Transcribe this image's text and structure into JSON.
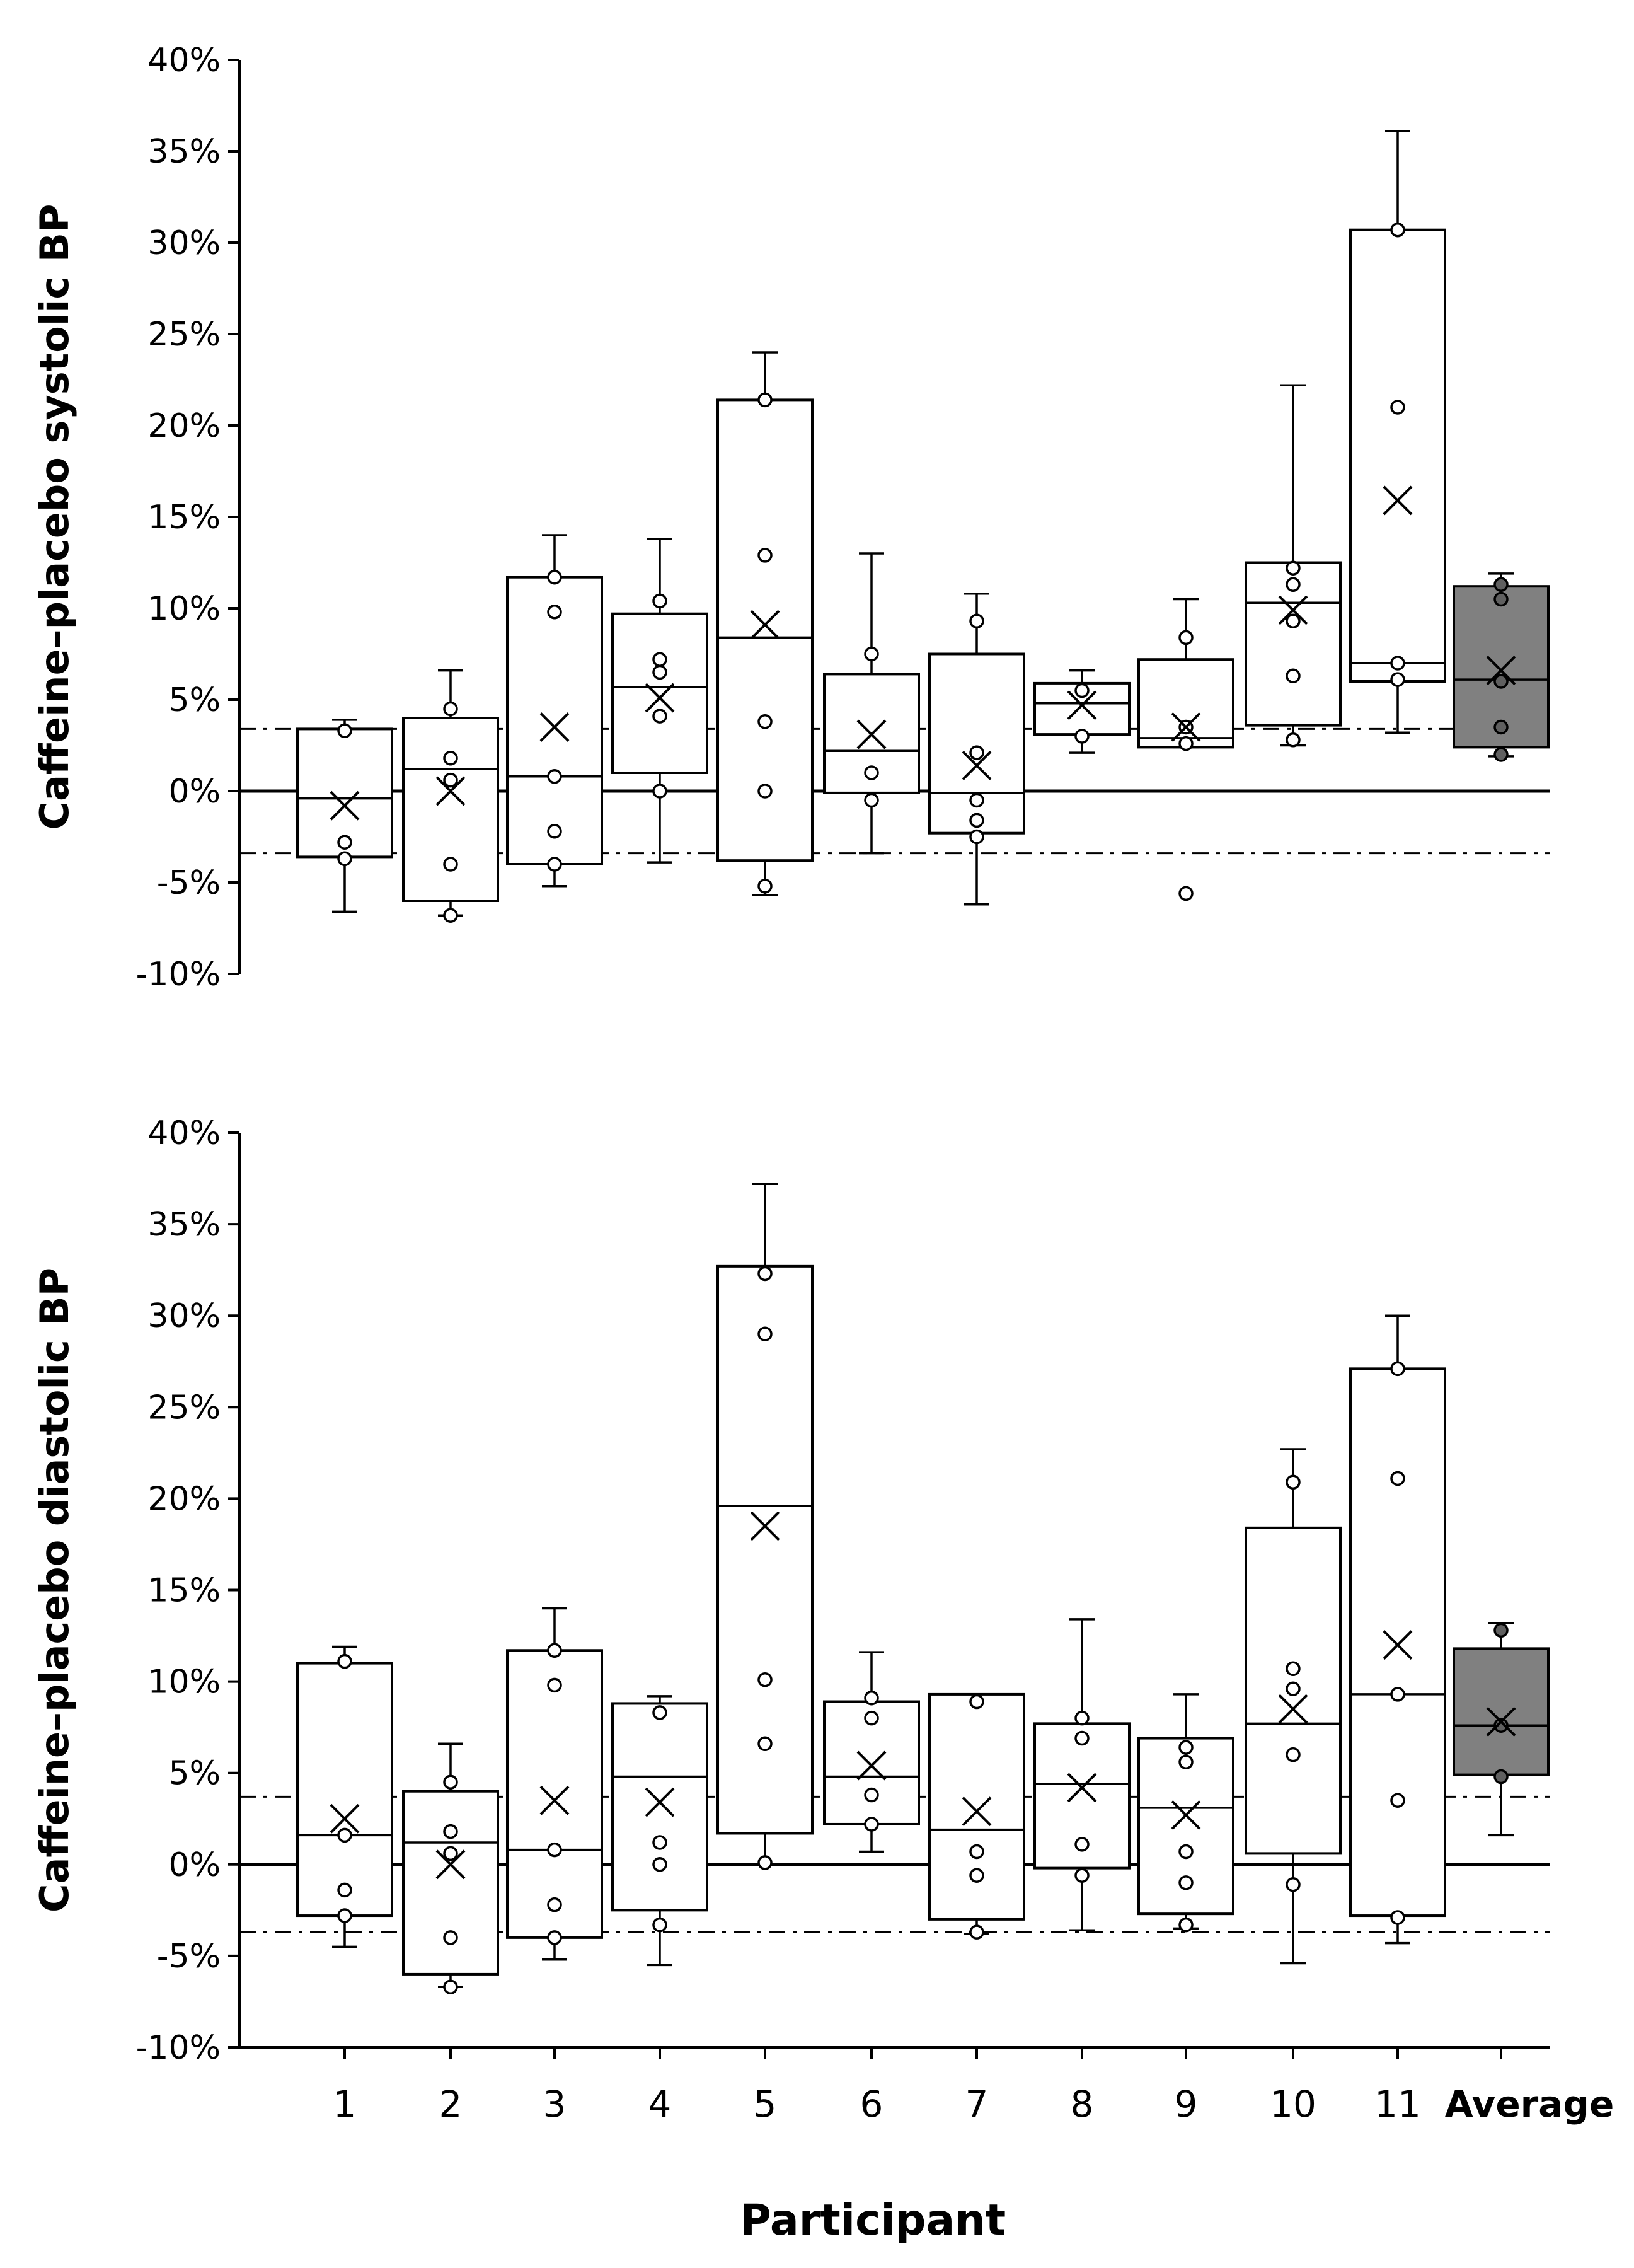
{
  "chart_data": [
    {
      "type": "box",
      "ylabel": "Caffeine–placebo systolic BP",
      "ylim": [
        -10,
        40
      ],
      "yticks": [
        40,
        35,
        30,
        25,
        20,
        15,
        10,
        5,
        0,
        -5,
        -10
      ],
      "ytick_labels": [
        "40%",
        "35%",
        "30%",
        "25%",
        "20%",
        "15%",
        "10%",
        "5%",
        "0%",
        "-5%",
        "-10%"
      ],
      "reference_lines": [
        {
          "y": 0,
          "style": "solid"
        },
        {
          "y": 3.4,
          "style": "dashdot"
        },
        {
          "y": -3.4,
          "style": "dashdot"
        }
      ],
      "categories": [
        "1",
        "2",
        "3",
        "4",
        "5",
        "6",
        "7",
        "8",
        "9",
        "10",
        "11",
        "Average"
      ],
      "boxes": [
        {
          "min": -6.6,
          "q1": -3.6,
          "median": -0.4,
          "q3": 3.4,
          "max": 3.9,
          "mean": -0.8,
          "points": [
            3.3,
            -2.8,
            -3.7
          ]
        },
        {
          "min": -6.8,
          "q1": -6.0,
          "median": 1.2,
          "q3": 4.0,
          "max": 6.6,
          "mean": 0.0,
          "points": [
            4.5,
            1.8,
            0.6,
            -4.0,
            -6.8
          ]
        },
        {
          "min": -5.2,
          "q1": -4.0,
          "median": 0.8,
          "q3": 11.7,
          "max": 14.0,
          "mean": 3.5,
          "points": [
            11.7,
            9.8,
            0.8,
            -2.2,
            -4.0
          ]
        },
        {
          "min": -3.9,
          "q1": 1.0,
          "median": 5.7,
          "q3": 9.7,
          "max": 13.8,
          "mean": 5.1,
          "points": [
            10.4,
            7.2,
            6.5,
            4.1,
            0.0
          ]
        },
        {
          "min": -5.7,
          "q1": -3.8,
          "median": 8.4,
          "q3": 21.4,
          "max": 24.0,
          "mean": 9.1,
          "points": [
            21.4,
            12.9,
            3.8,
            0.0,
            -5.2
          ]
        },
        {
          "min": -3.4,
          "q1": -0.1,
          "median": 2.2,
          "q3": 6.4,
          "max": 13.0,
          "mean": 3.1,
          "points": [
            7.5,
            1.0,
            -0.5
          ]
        },
        {
          "min": -6.2,
          "q1": -2.3,
          "median": -0.1,
          "q3": 7.5,
          "max": 10.8,
          "mean": 1.4,
          "points": [
            9.3,
            2.1,
            -0.5,
            -1.6,
            -2.5
          ]
        },
        {
          "min": 2.1,
          "q1": 3.1,
          "median": 4.8,
          "q3": 5.9,
          "max": 6.6,
          "mean": 4.7,
          "points": [
            5.5,
            3.0
          ]
        },
        {
          "min": 2.4,
          "q1": 2.4,
          "median": 2.9,
          "q3": 7.2,
          "max": 10.5,
          "mean": 3.5,
          "points": [
            8.4,
            3.5,
            2.6,
            -5.6
          ]
        },
        {
          "min": 2.5,
          "q1": 3.6,
          "median": 10.3,
          "q3": 12.5,
          "max": 22.2,
          "mean": 9.9,
          "points": [
            12.2,
            11.3,
            9.3,
            6.3,
            2.8
          ]
        },
        {
          "min": 3.2,
          "q1": 6.0,
          "median": 7.0,
          "q3": 30.7,
          "max": 36.1,
          "mean": 15.9,
          "points": [
            30.7,
            21.0,
            7.0,
            6.1
          ]
        },
        {
          "min": 1.9,
          "q1": 2.4,
          "median": 6.1,
          "q3": 11.2,
          "max": 11.9,
          "mean": 6.6,
          "points": [
            11.3,
            10.5,
            6.0,
            3.5,
            2.0
          ],
          "filled": true
        }
      ]
    },
    {
      "type": "box",
      "ylabel": "Caffeine–placebo diastolic BP",
      "xlabel": "Participant",
      "ylim": [
        -10,
        40
      ],
      "yticks": [
        40,
        35,
        30,
        25,
        20,
        15,
        10,
        5,
        0,
        -5,
        -10
      ],
      "ytick_labels": [
        "40%",
        "35%",
        "30%",
        "25%",
        "20%",
        "15%",
        "10%",
        "5%",
        "0%",
        "-5%",
        "-10%"
      ],
      "reference_lines": [
        {
          "y": 0,
          "style": "solid"
        },
        {
          "y": 3.7,
          "style": "dashdot"
        },
        {
          "y": -3.7,
          "style": "dashdot"
        }
      ],
      "categories": [
        "1",
        "2",
        "3",
        "4",
        "5",
        "6",
        "7",
        "8",
        "9",
        "10",
        "11",
        "Average"
      ],
      "boxes": [
        {
          "min": -4.5,
          "q1": -2.8,
          "median": 1.6,
          "q3": 11.0,
          "max": 11.9,
          "mean": 2.5,
          "points": [
            11.1,
            1.6,
            -1.4,
            -2.8
          ]
        },
        {
          "min": -6.7,
          "q1": -6.0,
          "median": 1.2,
          "q3": 4.0,
          "max": 6.6,
          "mean": 0.0,
          "points": [
            4.5,
            1.8,
            0.6,
            -4.0,
            -6.7
          ]
        },
        {
          "min": -5.2,
          "q1": -4.0,
          "median": 0.8,
          "q3": 11.7,
          "max": 14.0,
          "mean": 3.5,
          "points": [
            11.7,
            9.8,
            0.8,
            -2.2,
            -4.0
          ]
        },
        {
          "min": -5.5,
          "q1": -2.5,
          "median": 4.8,
          "q3": 8.8,
          "max": 9.2,
          "mean": 3.4,
          "points": [
            8.3,
            1.2,
            0.0,
            -3.3
          ]
        },
        {
          "min": 0.0,
          "q1": 1.7,
          "median": 19.6,
          "q3": 32.7,
          "max": 37.2,
          "mean": 18.5,
          "points": [
            32.3,
            29.0,
            10.1,
            6.6,
            0.1
          ]
        },
        {
          "min": 0.7,
          "q1": 2.2,
          "median": 4.8,
          "q3": 8.9,
          "max": 11.6,
          "mean": 5.4,
          "points": [
            9.1,
            8.0,
            3.8,
            2.2
          ]
        },
        {
          "min": -3.8,
          "q1": -3.0,
          "median": 1.9,
          "q3": 9.3,
          "max": 9.3,
          "mean": 2.9,
          "points": [
            8.9,
            0.7,
            -0.6,
            -3.7
          ]
        },
        {
          "min": -3.6,
          "q1": -0.2,
          "median": 4.4,
          "q3": 7.7,
          "max": 13.4,
          "mean": 4.2,
          "points": [
            8.0,
            6.9,
            1.1,
            -0.6
          ]
        },
        {
          "min": -3.5,
          "q1": -2.7,
          "median": 3.1,
          "q3": 6.9,
          "max": 9.3,
          "mean": 2.7,
          "points": [
            6.4,
            5.6,
            0.7,
            -1.0,
            -3.3
          ]
        },
        {
          "min": -5.4,
          "q1": 0.6,
          "median": 7.7,
          "q3": 18.4,
          "max": 22.7,
          "mean": 8.5,
          "points": [
            20.9,
            10.7,
            9.6,
            6.0,
            -1.1
          ]
        },
        {
          "min": -4.3,
          "q1": -2.8,
          "median": 9.3,
          "q3": 27.1,
          "max": 30.0,
          "mean": 12.0,
          "points": [
            27.1,
            21.1,
            9.3,
            3.5,
            -2.9
          ]
        },
        {
          "min": 1.6,
          "q1": 4.9,
          "median": 7.6,
          "q3": 11.8,
          "max": 13.2,
          "mean": 7.8,
          "points": [
            12.8,
            7.6,
            4.8
          ],
          "filled": true
        }
      ]
    }
  ],
  "colors": {
    "axis": "#000000",
    "box_fill": "#ffffff",
    "average_fill": "#808080",
    "average_point_fill": "#606060"
  }
}
